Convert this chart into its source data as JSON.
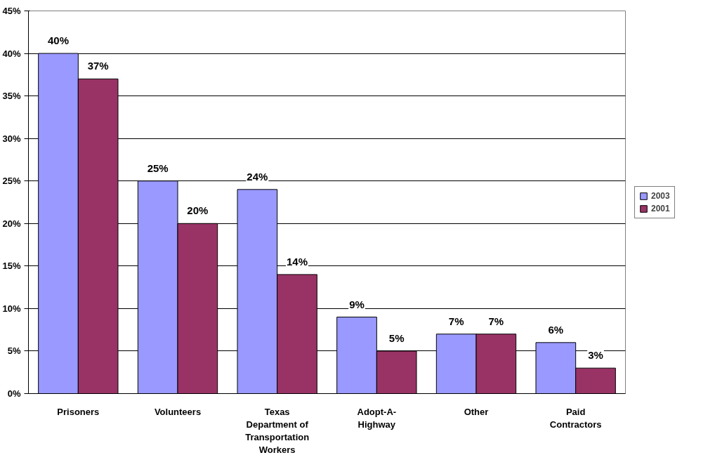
{
  "chart_data": {
    "type": "bar",
    "categories": [
      "Prisoners",
      "Volunteers",
      "Texas Department of Transportation Workers",
      "Adopt-A-Highway",
      "Other",
      "Paid Contractors"
    ],
    "series": [
      {
        "name": "2003",
        "color": "#9999ff",
        "values": [
          40,
          25,
          24,
          9,
          7,
          6
        ],
        "value_labels": [
          "40%",
          "25%",
          "24%",
          "9%",
          "7%",
          "6%"
        ]
      },
      {
        "name": "2001",
        "color": "#993366",
        "values": [
          37,
          20,
          14,
          5,
          7,
          3
        ],
        "value_labels": [
          "37%",
          "20%",
          "14%",
          "5%",
          "7%",
          "3%"
        ]
      }
    ],
    "ylim": [
      0,
      45
    ],
    "yticks": [
      {
        "value": 0,
        "label": "0%"
      },
      {
        "value": 5,
        "label": "5%"
      },
      {
        "value": 10,
        "label": "10%"
      },
      {
        "value": 15,
        "label": "15%"
      },
      {
        "value": 20,
        "label": "20%"
      },
      {
        "value": 25,
        "label": "25%"
      },
      {
        "value": 30,
        "label": "30%"
      },
      {
        "value": 35,
        "label": "35%"
      },
      {
        "value": 40,
        "label": "40%"
      },
      {
        "value": 45,
        "label": "45%"
      }
    ],
    "grid": "y",
    "legend": "right"
  }
}
